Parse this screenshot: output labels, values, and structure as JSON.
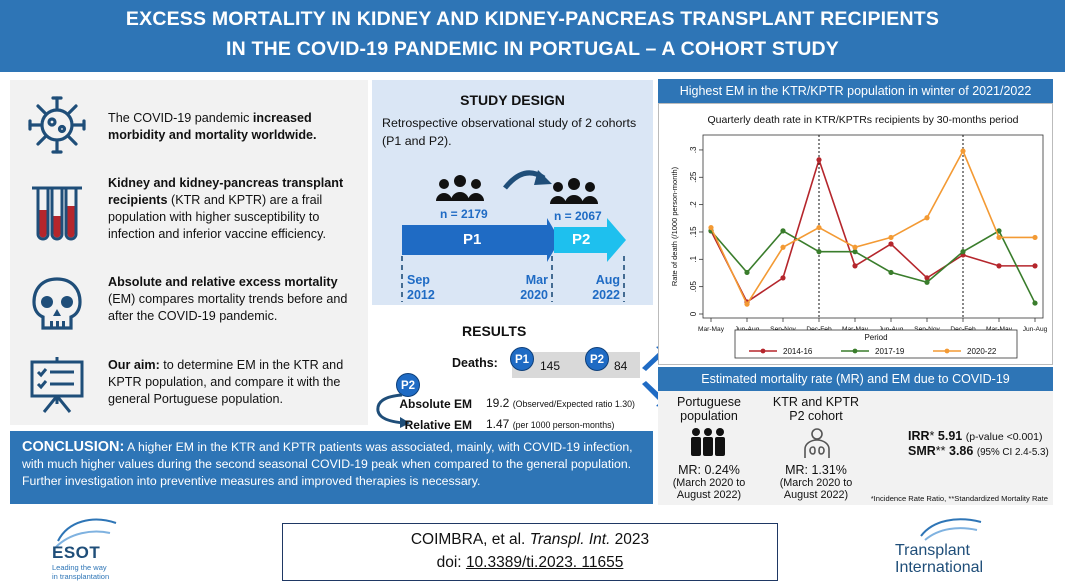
{
  "header": {
    "line1": "EXCESS MORTALITY IN KIDNEY AND KIDNEY-PANCREAS  TRANSPLANT RECIPIENTS",
    "line2": "IN THE COVID-19 PANDEMIC IN PORTUGAL – A COHORT STUDY"
  },
  "left": {
    "item1": {
      "normal": "The COVID-19 pandemic ",
      "bold": "increased morbidity and mortality worldwide.",
      "icon": "virus-icon"
    },
    "item2": {
      "bold": "Kidney and kidney-pancreas transplant recipients",
      "normal": " (KTR and KPTR) are a frail population with higher susceptibility to infection and inferior vaccine efficiency.",
      "icon": "test-tubes-icon"
    },
    "item3": {
      "bold": "Absolute and relative excess mortality",
      "normal": " (EM) compares mortality trends before and after the COVID-19 pandemic.",
      "icon": "skull-icon"
    },
    "item4": {
      "bold": "Our aim:",
      "normal": " to determine EM in the KTR and KPTR population, and compare it with the general Portuguese population.",
      "icon": "presentation-checklist-icon"
    }
  },
  "design": {
    "title": "STUDY DESIGN",
    "text": "Retrospective observational study of 2 cohorts (P1 and P2).",
    "n1": "n = 2179",
    "n2": "n = 2067",
    "p1": "P1",
    "p2": "P2",
    "d1a": "Sep",
    "d1b": "2012",
    "d2a": "Mar",
    "d2b": "2020",
    "d3a": "Aug",
    "d3b": "2022"
  },
  "results": {
    "title": "RESULTS",
    "deaths_label": "Deaths:",
    "p1": "P1",
    "p1_deaths": "145",
    "p2": "P2",
    "p2_deaths": "84",
    "abs_label": "Absolute EM",
    "abs_value": "19.2",
    "abs_note": "(Observed/Expected ratio 1.30)",
    "rel_label": "Relative EM",
    "rel_value": "1.47",
    "rel_note": "(per 1000 person-months)"
  },
  "conclusion": {
    "label": "CONCLUSION:",
    "text": " A higher EM in the KTR and KPTR patients was associated, mainly, with COVID-19 infection, with much higher values during the second seasonal COVID-19 peak when compared to the general population. Further investigation into preventive measures and improved therapies is necessary."
  },
  "chart_header": "Highest EM in the KTR/KPTR population in winter of 2021/2022",
  "chart_data": {
    "type": "line",
    "title": "Quarterly death rate in KTR/KPTRs recipients by 30-months period",
    "ylabel": "Rate of death (/1000 person-month)",
    "categories": [
      "Mar-May",
      "Jun-Aug",
      "Sep-Nov",
      "Dec-Feb",
      "Mar-May",
      "Jun-Aug",
      "Sep-Nov",
      "Dec-Feb",
      "Mar-May",
      "Jun-Aug"
    ],
    "yticks": [
      0,
      0.05,
      0.1,
      0.15,
      0.2,
      0.25,
      0.3
    ],
    "ytick_labels": [
      "0",
      ".05",
      ".1",
      ".15",
      ".2",
      ".25",
      ".3"
    ],
    "ylim": [
      0,
      0.32
    ],
    "vlines": [
      3,
      7
    ],
    "legend_title": "Period",
    "legend_position": "bottom",
    "series": [
      {
        "name": "2014-16",
        "color": "#b5262c",
        "values": [
          0.152,
          0.022,
          0.066,
          0.282,
          0.088,
          0.128,
          0.066,
          0.108,
          0.088,
          0.088
        ]
      },
      {
        "name": "2017-19",
        "color": "#3a7d2c",
        "values": [
          0.152,
          0.076,
          0.152,
          0.114,
          0.114,
          0.076,
          0.058,
          0.114,
          0.152,
          0.02
        ]
      },
      {
        "name": "2020-22",
        "color": "#f39a34",
        "values": [
          0.158,
          0.018,
          0.122,
          0.158,
          0.122,
          0.14,
          0.176,
          0.298,
          0.14,
          0.14
        ]
      }
    ]
  },
  "mr": {
    "header": "Estimated mortality rate (MR) and EM due to COVID-19",
    "col1_label1": "Portuguese",
    "col1_label2": "population",
    "col1_mr": "MR: 0.24%",
    "col1_sub1": "(March 2020 to",
    "col1_sub2": "August 2022)",
    "col2_label1": "KTR and KPTR",
    "col2_label2": "P2 cohort",
    "col2_mr": "MR: 1.31%",
    "col2_sub1": "(March 2020 to",
    "col2_sub2": "August 2022)",
    "irr_label": "IRR",
    "irr_star": "*",
    "irr_value": "5.91",
    "irr_note": "(p-value <0.001)",
    "smr_label": "SMR",
    "smr_star": "**",
    "smr_value": "3.86",
    "smr_note": "(95% CI 2.4-5.3)",
    "footnote": "*Incidence Rate Ratio, **Standardized Mortality Rate"
  },
  "citation": {
    "authors": "COIMBRA, et al. ",
    "journal": "Transpl. Int.",
    "year": " 2023",
    "doi_label": "doi: ",
    "doi": "10.3389/ti.2023. 11655"
  },
  "logos": {
    "esot": "ESOT",
    "esot_tag1": "Leading the way",
    "esot_tag2": "in transplantation",
    "ti1": "Transplant",
    "ti2": "International"
  }
}
